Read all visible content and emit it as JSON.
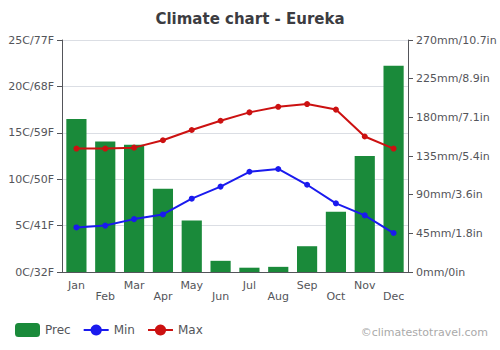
{
  "chart_data": {
    "type": "bar",
    "title": "Climate chart - Eureka",
    "categories": [
      "Jan",
      "Feb",
      "Mar",
      "Apr",
      "May",
      "Jun",
      "Jul",
      "Aug",
      "Sep",
      "Oct",
      "Nov",
      "Dec"
    ],
    "series": [
      {
        "name": "Prec",
        "type": "bar",
        "axis": "y2",
        "color": "#1a8a3a",
        "values": [
          178,
          152,
          148,
          97,
          60,
          13,
          5,
          6,
          30,
          70,
          135,
          240
        ]
      },
      {
        "name": "Min",
        "type": "line",
        "color": "#1a1aee",
        "marker": "circle",
        "values": [
          4.8,
          5.0,
          5.7,
          6.2,
          7.9,
          9.2,
          10.8,
          11.1,
          9.4,
          7.4,
          6.1,
          4.2
        ]
      },
      {
        "name": "Max",
        "type": "line",
        "color": "#cc1111",
        "marker": "circle",
        "values": [
          13.3,
          13.3,
          13.4,
          14.2,
          15.3,
          16.3,
          17.2,
          17.8,
          18.1,
          17.5,
          14.6,
          13.3
        ]
      }
    ],
    "ylim": [
      0,
      25
    ],
    "yticks": [
      {
        "value": 0,
        "label": "0C/32F"
      },
      {
        "value": 5,
        "label": "5C/41F"
      },
      {
        "value": 10,
        "label": "10C/50F"
      },
      {
        "value": 15,
        "label": "15C/59F"
      },
      {
        "value": 20,
        "label": "20C/68F"
      },
      {
        "value": 25,
        "label": "25C/77F"
      }
    ],
    "y2lim": [
      0,
      270
    ],
    "y2ticks": [
      {
        "value": 0,
        "label": "0mm/0in"
      },
      {
        "value": 45,
        "label": "45mm/1.8in"
      },
      {
        "value": 90,
        "label": "90mm/3.6in"
      },
      {
        "value": 135,
        "label": "135mm/5.4in"
      },
      {
        "value": 180,
        "label": "180mm/7.1in"
      },
      {
        "value": 225,
        "label": "225mm/8.9in"
      },
      {
        "value": 270,
        "label": "270mm/10.7in"
      }
    ],
    "grid": true,
    "legend": "lower left",
    "annotations": [
      "©climatestotravel.com"
    ]
  }
}
